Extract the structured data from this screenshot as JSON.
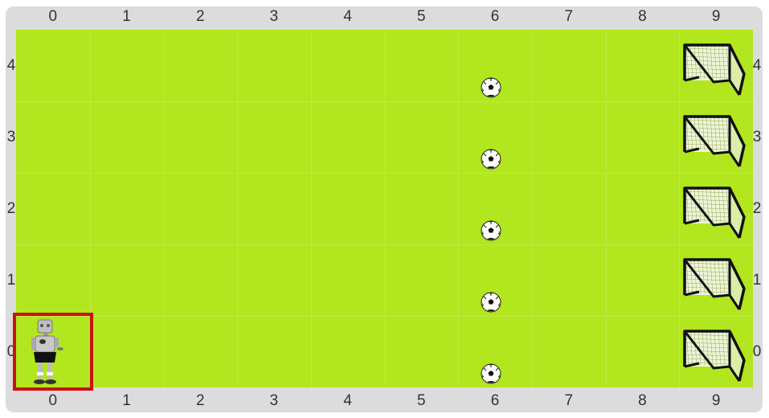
{
  "grid": {
    "columns": [
      "0",
      "1",
      "2",
      "3",
      "4",
      "5",
      "6",
      "7",
      "8",
      "9"
    ],
    "rows": [
      "0",
      "1",
      "2",
      "3",
      "4"
    ]
  },
  "colors": {
    "field": "#b2e61e",
    "border": "#dcdcdc",
    "selection": "#cc1111"
  },
  "player": {
    "col": 0,
    "row": 0,
    "icon": "player-robot-icon",
    "selected": true
  },
  "balls": [
    {
      "col": 6,
      "row": 4
    },
    {
      "col": 6,
      "row": 3
    },
    {
      "col": 6,
      "row": 2
    },
    {
      "col": 6,
      "row": 1
    },
    {
      "col": 6,
      "row": 0
    }
  ],
  "goals": [
    {
      "col": 9,
      "row": 4
    },
    {
      "col": 9,
      "row": 3
    },
    {
      "col": 9,
      "row": 2
    },
    {
      "col": 9,
      "row": 1
    },
    {
      "col": 9,
      "row": 0
    }
  ]
}
